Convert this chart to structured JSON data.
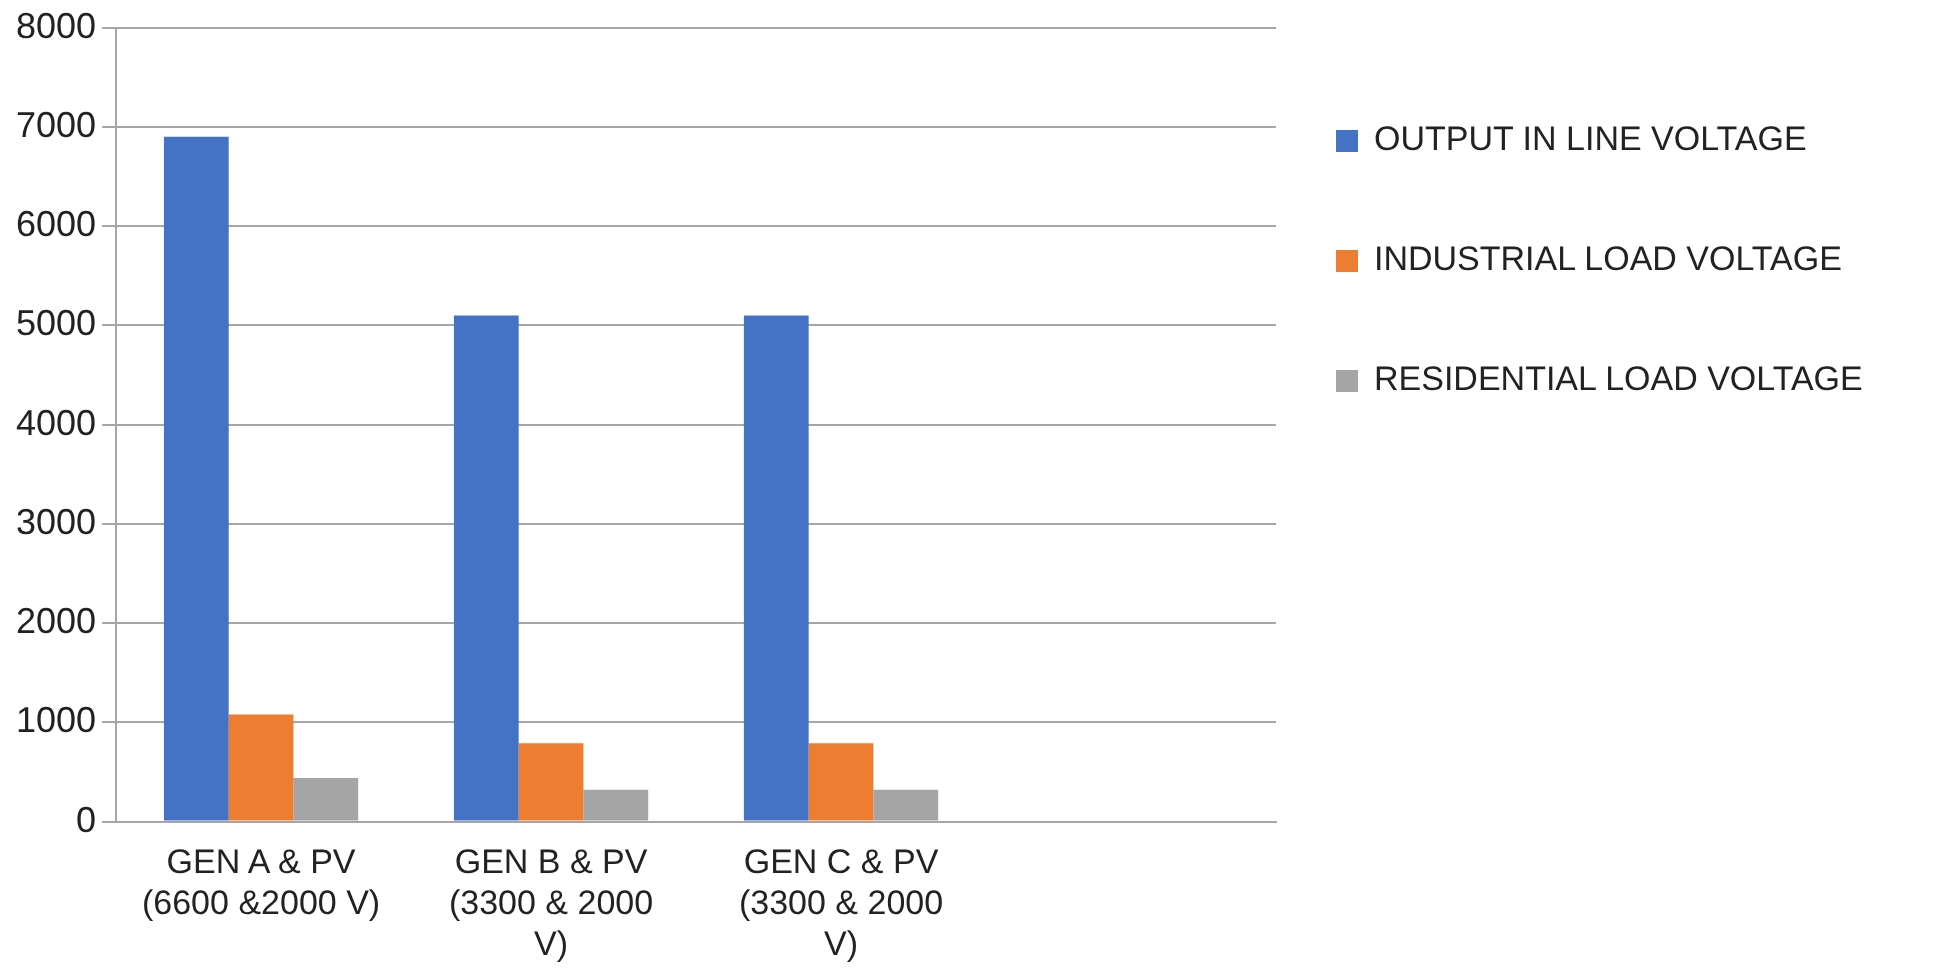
{
  "chart_data": {
    "type": "bar",
    "categories": [
      "GEN A & PV (6600 &2000 V)",
      "GEN B & PV (3300 & 2000 V)",
      "GEN C & PV (3300 & 2000 V)",
      null
    ],
    "series": [
      {
        "name": "OUTPUT IN LINE VOLTAGE",
        "color": "#4472c4",
        "values": [
          6900,
          5100,
          5100,
          null
        ]
      },
      {
        "name": "INDUSTRIAL LOAD VOLTAGE",
        "color": "#ed7d31",
        "values": [
          1080,
          790,
          790,
          null
        ]
      },
      {
        "name": "RESIDENTIAL LOAD VOLTAGE",
        "color": "#a5a5a5",
        "values": [
          440,
          320,
          320,
          null
        ]
      }
    ],
    "ylim": [
      0,
      8000
    ],
    "yticks": [
      0,
      1000,
      2000,
      3000,
      4000,
      5000,
      6000,
      7000,
      8000
    ],
    "grid": "y",
    "legend": "right"
  }
}
